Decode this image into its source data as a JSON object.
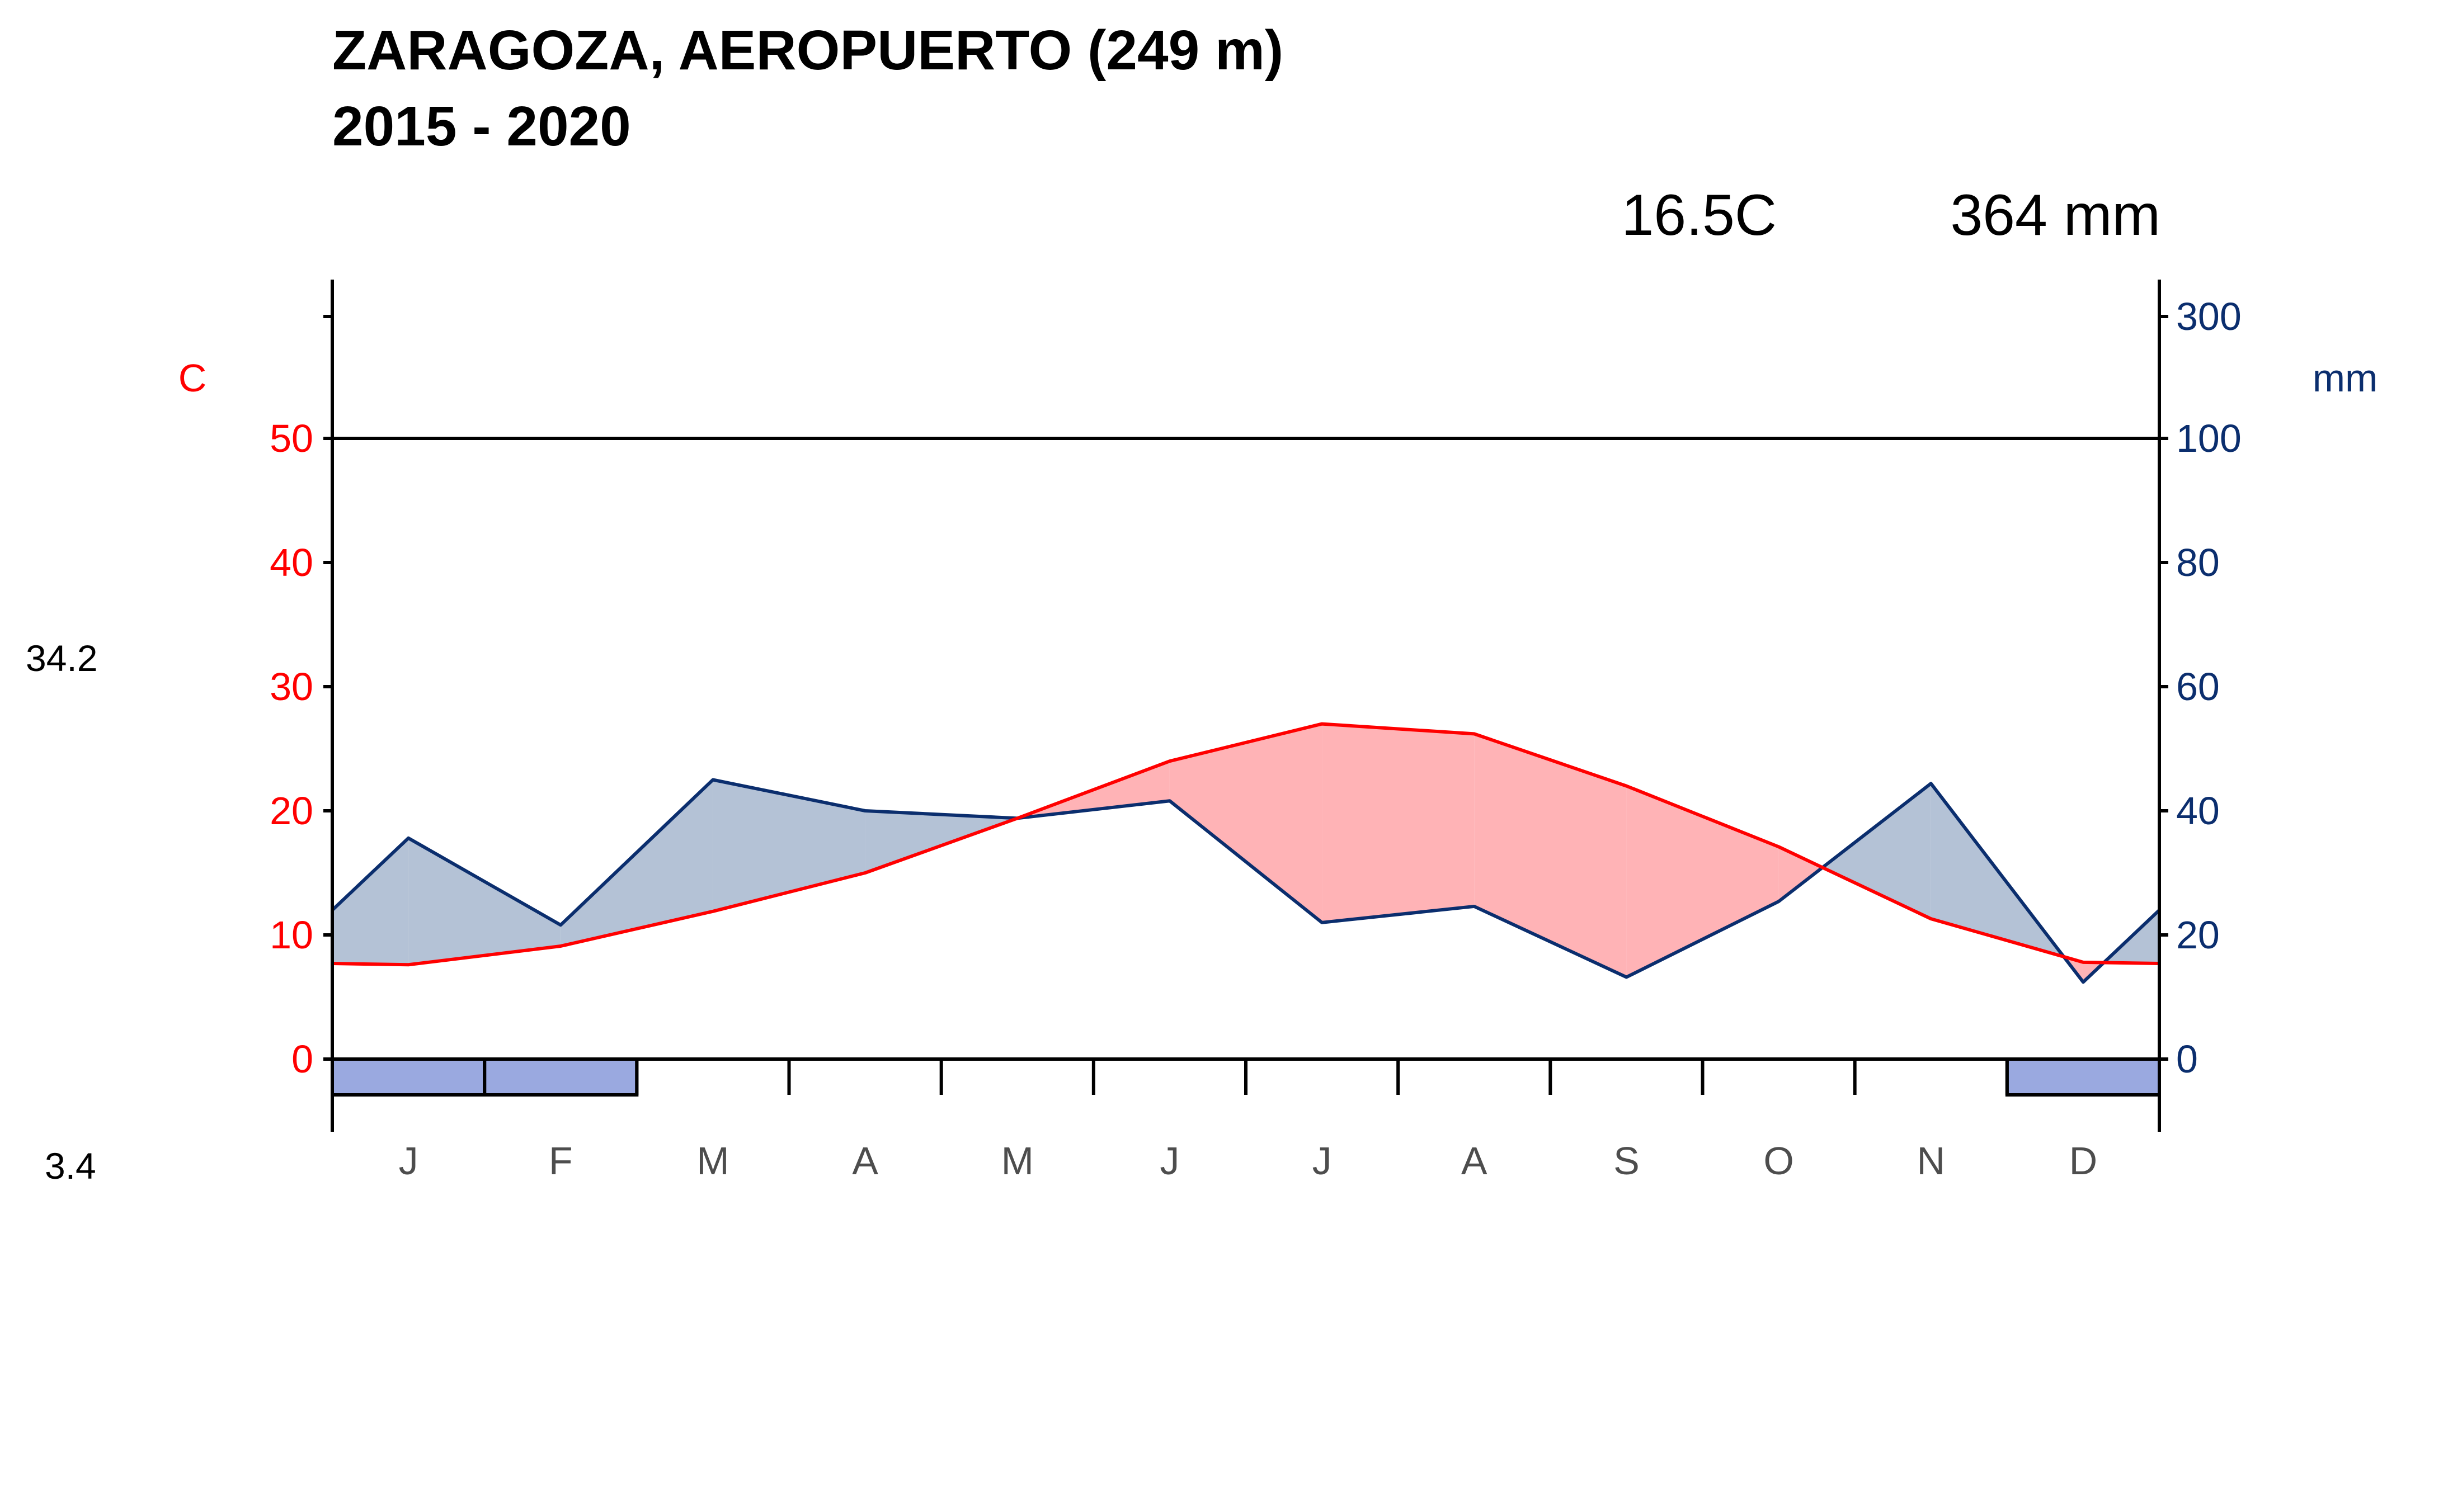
{
  "title": {
    "line1": "ZARAGOZA, AEROPUERTO (249 m)",
    "line2": "2015 - 2020"
  },
  "summary": {
    "mean_temp": "16.5C",
    "annual_precip": "364 mm"
  },
  "extremes": {
    "max_label": "34.2",
    "min_label": "3.4"
  },
  "axes": {
    "left_unit": "C",
    "right_unit": "mm",
    "left_ticks": [
      "0",
      "10",
      "20",
      "30",
      "40",
      "50"
    ],
    "right_ticks": [
      "0",
      "20",
      "40",
      "60",
      "80",
      "100",
      "300"
    ]
  },
  "colors": {
    "temperature": "#ff0000",
    "precipitation": "#0b2e6e",
    "humid_fill": "#b4c2d6",
    "dry_fill": "#ffb3b6",
    "frost_box": "#9aa9e0",
    "axis": "#000000"
  },
  "chart_data": {
    "type": "line",
    "chart_kind": "climate-diagram (Walter-Lieth)",
    "categories": [
      "J",
      "F",
      "M",
      "A",
      "M",
      "J",
      "J",
      "A",
      "S",
      "O",
      "N",
      "D"
    ],
    "series": [
      {
        "key": "temperature",
        "unit": "C",
        "axis": "left",
        "values": [
          7.6,
          9.1,
          11.9,
          15.0,
          19.4,
          24.0,
          27.0,
          26.2,
          22.0,
          17.1,
          11.3,
          7.8
        ]
      },
      {
        "key": "precipitation",
        "unit": "mm",
        "axis": "right",
        "values": [
          35.6,
          21.6,
          45.0,
          40.0,
          38.8,
          41.6,
          22.0,
          24.6,
          13.2,
          25.4,
          44.4,
          12.4
        ]
      }
    ],
    "boundary": {
      "temperature_at_edge": 7.7,
      "precipitation_at_edge": 24.0
    },
    "left_axis_range": [
      0,
      50
    ],
    "right_axis_range": [
      0,
      100
    ],
    "right_axis_compressed_top": 300,
    "frost_months": [
      0,
      1,
      11
    ],
    "grid": false
  }
}
